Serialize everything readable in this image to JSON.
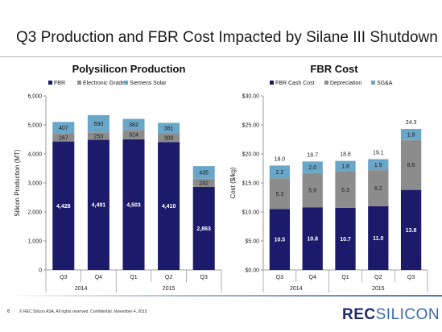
{
  "slide": {
    "title": "Q3 Production and FBR Cost Impacted by Silane III Shutdown",
    "page_number": "6",
    "footer_text": "©   REC Silicon ASA. All rights reserved. Confidential. November 4, 2015",
    "logo_part1": "REC",
    "logo_part2": "SILICON"
  },
  "colors": {
    "fbr": "#1c1a6b",
    "mid": "#8c8c8c",
    "top": "#6aa6c8",
    "text_light": "#ffffff",
    "text_dark": "#1a1a1a"
  },
  "chart_data": [
    {
      "type": "bar",
      "stacked": true,
      "title": "Polysilicon Production",
      "ylabel": "Silicon Production (MT)",
      "xlabel": "",
      "ylim": [
        0,
        6000
      ],
      "yticks": [
        "0",
        "1,000",
        "2,000",
        "3,000",
        "4,000",
        "5,000",
        "6,000"
      ],
      "categories": [
        "Q3",
        "Q4",
        "Q1",
        "Q2",
        "Q3"
      ],
      "groups": [
        {
          "label": "2014",
          "span": [
            0,
            1
          ]
        },
        {
          "label": "2015",
          "span": [
            2,
            4
          ]
        }
      ],
      "legend_position": "top-left",
      "series": [
        {
          "name": "FBR",
          "values": [
            4428,
            4491,
            4503,
            4410,
            2863
          ],
          "labels": [
            "4,428",
            "4,491",
            "4,503",
            "4,410",
            "2,863"
          ]
        },
        {
          "name": "Electronic Grade",
          "values": [
            267,
            253,
            324,
            300,
            282
          ],
          "labels": [
            "267",
            "253",
            "324",
            "300",
            "282"
          ]
        },
        {
          "name": "Siemens Solar",
          "values": [
            407,
            593,
            382,
            361,
            435
          ],
          "labels": [
            "407",
            "593",
            "382",
            "361",
            "435"
          ]
        }
      ],
      "totals": null
    },
    {
      "type": "bar",
      "stacked": true,
      "title": "FBR Cost",
      "ylabel": "Cost ($/kg)",
      "xlabel": "",
      "ylim": [
        0,
        30
      ],
      "yticks": [
        "$0.00",
        "$5.00",
        "$10.00",
        "$15.00",
        "$20.00",
        "$25.00",
        "$30.00"
      ],
      "categories": [
        "Q3",
        "Q4",
        "Q1",
        "Q2",
        "Q3"
      ],
      "groups": [
        {
          "label": "2014",
          "span": [
            0,
            1
          ]
        },
        {
          "label": "2015",
          "span": [
            2,
            4
          ]
        }
      ],
      "legend_position": "top",
      "series": [
        {
          "name": "FBR Cash Cost",
          "values": [
            10.5,
            10.8,
            10.7,
            11.0,
            13.8
          ],
          "labels": [
            "10.5",
            "10.8",
            "10.7",
            "11.0",
            "13.8"
          ]
        },
        {
          "name": "Depreciation",
          "values": [
            5.3,
            5.9,
            6.3,
            6.2,
            8.6
          ],
          "labels": [
            "5.3",
            "5.9",
            "6.3",
            "6.2",
            "8.6"
          ]
        },
        {
          "name": "SG&A",
          "values": [
            2.2,
            2.0,
            1.8,
            1.9,
            1.9
          ],
          "labels": [
            "2.2",
            "2.0",
            "1.8",
            "1.9",
            "1.9"
          ]
        }
      ],
      "totals": [
        "18.0",
        "18.7",
        "18.8",
        "19.1",
        "24.3"
      ]
    }
  ]
}
